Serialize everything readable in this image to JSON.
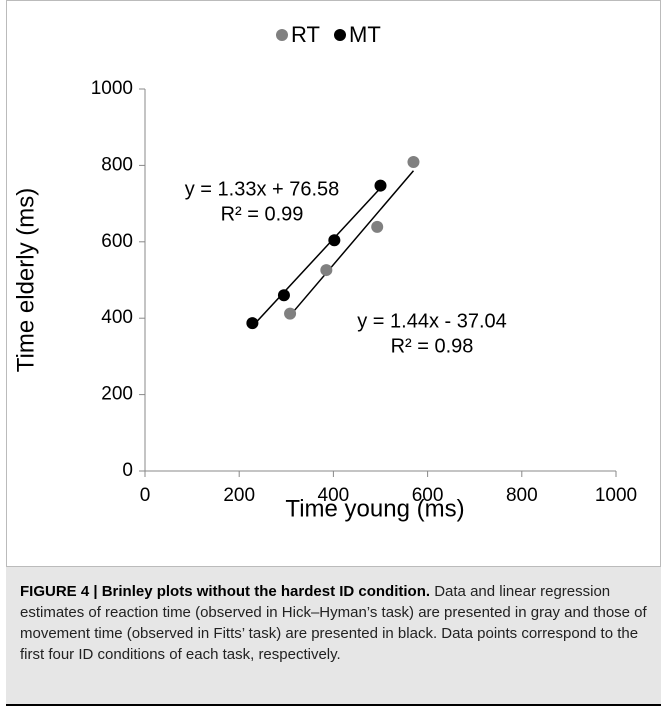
{
  "chart_data": {
    "type": "scatter",
    "xlabel": "Time young (ms)",
    "ylabel": "Time elderly (ms)",
    "xlim": [
      0,
      1000
    ],
    "ylim": [
      0,
      1000
    ],
    "xticks": [
      0,
      200,
      400,
      600,
      800,
      1000
    ],
    "yticks": [
      0,
      200,
      400,
      600,
      800,
      1000
    ],
    "legend": "top",
    "trendline": true,
    "series": [
      {
        "name": "RT",
        "color": "#808080",
        "x": [
          308,
          385,
          493,
          570
        ],
        "values": [
          412,
          526,
          639,
          809
        ]
      },
      {
        "name": "MT",
        "color": "#000000",
        "x": [
          228,
          295,
          402,
          500
        ],
        "values": [
          387,
          460,
          604,
          747
        ]
      }
    ],
    "annotations": [
      "y = 1.44x - 37.04",
      "R² = 0.98",
      "y = 1.33x + 76.58",
      "R² = 0.99"
    ]
  },
  "caption": {
    "title": "FIGURE 4 | Brinley plots without the hardest ID condition.",
    "text": "Data and linear regression estimates of reaction time (observed in Hick–Hyman’s task) are presented in gray and those of movement time (observed in Fitts’ task) are presented in black. Data points correspond to the first four ID conditions of each task, respectively."
  }
}
